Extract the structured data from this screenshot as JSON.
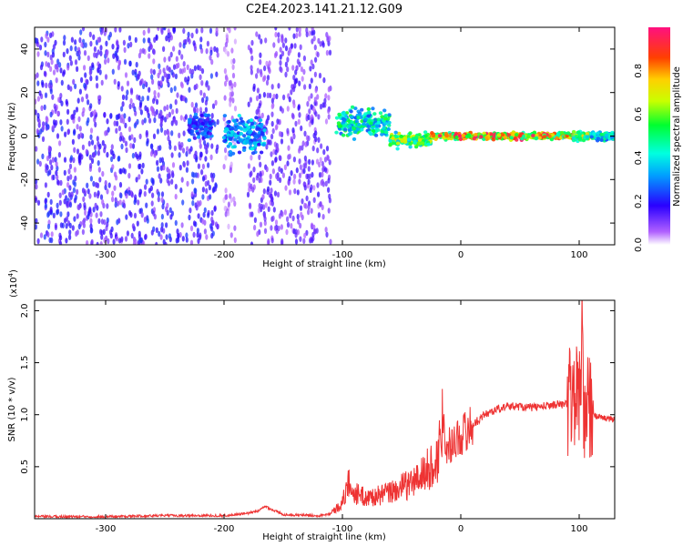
{
  "figure_title": "C2E4.2023.141.21.12.G09",
  "chart_data": [
    {
      "type": "heatmap",
      "xlabel": "Height of straight line (km)",
      "ylabel": "Frequency (Hz)",
      "xlim": [
        -360,
        130
      ],
      "ylim": [
        -50,
        50
      ],
      "x_ticks": [
        -300,
        -200,
        -100,
        0,
        100
      ],
      "y_ticks": [
        -40,
        -20,
        0,
        20,
        40
      ],
      "colorbar": {
        "label": "Normalized spectral amplitude",
        "range": [
          0,
          1
        ],
        "ticks": [
          0.0,
          0.2,
          0.4,
          0.6,
          0.8
        ],
        "tick_labels": [
          "0.0",
          "0.2",
          "0.4",
          "0.6",
          "0.8"
        ],
        "colormap": "rainbow"
      },
      "features": [
        {
          "x_range": [
            -360,
            -205
          ],
          "freq_center": 0,
          "freq_spread": 50,
          "amplitude": 0.2
        },
        {
          "x_range": [
            -200,
            -190
          ],
          "freq_center": 0,
          "freq_spread": 50,
          "amplitude": 0.08
        },
        {
          "x_range": [
            -180,
            -110
          ],
          "freq_center": 0,
          "freq_spread": 50,
          "amplitude": 0.15
        },
        {
          "x_range": [
            -230,
            -210
          ],
          "freq_center": 5,
          "freq_spread": 6,
          "amplitude": 0.3
        },
        {
          "x_range": [
            -200,
            -165
          ],
          "freq_center": 1,
          "freq_spread": 8,
          "amplitude": 0.4
        },
        {
          "x_range": [
            -105,
            -60
          ],
          "freq_center": 6,
          "freq_spread": 6,
          "amplitude": 0.55
        },
        {
          "x_range": [
            -60,
            -25
          ],
          "freq_center": -2,
          "freq_spread": 3,
          "amplitude": 0.7
        },
        {
          "x_range": [
            -25,
            95
          ],
          "freq_center": 0,
          "freq_spread": 1.5,
          "amplitude": 0.95
        },
        {
          "x_range": [
            95,
            110
          ],
          "freq_center": 0,
          "freq_spread": 2,
          "amplitude": 0.8
        },
        {
          "x_range": [
            110,
            130
          ],
          "freq_center": 0,
          "freq_spread": 2,
          "amplitude": 0.5
        }
      ]
    },
    {
      "type": "line",
      "xlabel": "Height of straight line (km)",
      "ylabel": "SNR (10 * v/v)",
      "y_multiplier": "(x10",
      "y_multiplier_exp": "4",
      "y_multiplier_close": ")",
      "xlim": [
        -360,
        130
      ],
      "ylim": [
        0,
        2.1
      ],
      "x_ticks": [
        -300,
        -200,
        -100,
        0,
        100
      ],
      "y_ticks": [
        0.5,
        1.0,
        1.5,
        2.0
      ],
      "y_tick_labels": [
        "0.5",
        "1.0",
        "1.5",
        "2.0"
      ],
      "color": "#ee3333",
      "series": [
        {
          "x": [
            -360,
            -300,
            -250,
            -200,
            -180,
            -170,
            -165,
            -160,
            -150,
            -120,
            -110,
            -100,
            -95,
            -90,
            -80,
            -70,
            -60,
            -50,
            -40,
            -30,
            -20,
            -15,
            -12,
            -10,
            0,
            10,
            20,
            30,
            40,
            50,
            60,
            70,
            80,
            90,
            95,
            100,
            103,
            105,
            107,
            110,
            120,
            130
          ],
          "y": [
            0.02,
            0.02,
            0.03,
            0.03,
            0.05,
            0.08,
            0.12,
            0.09,
            0.04,
            0.03,
            0.05,
            0.15,
            0.35,
            0.25,
            0.2,
            0.22,
            0.25,
            0.3,
            0.35,
            0.45,
            0.55,
            1.0,
            0.7,
            0.7,
            0.8,
            0.9,
            1.0,
            1.05,
            1.08,
            1.08,
            1.07,
            1.08,
            1.1,
            1.1,
            1.2,
            1.2,
            1.3,
            1.0,
            1.05,
            1.0,
            0.97,
            0.95
          ]
        }
      ]
    }
  ]
}
